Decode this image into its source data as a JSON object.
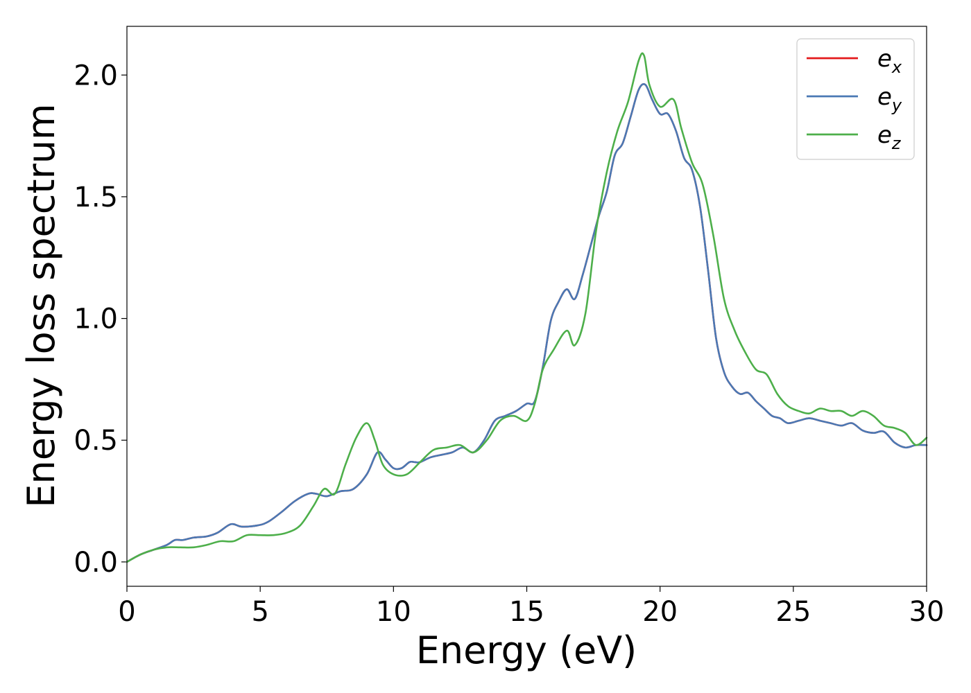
{
  "chart_data": {
    "type": "line",
    "xlabel": "Energy (eV)",
    "ylabel": "Energy loss spectrum",
    "xlim": [
      0,
      30
    ],
    "ylim": [
      -0.1,
      2.2
    ],
    "xticks": [
      0,
      5,
      10,
      15,
      20,
      25,
      30
    ],
    "xtick_labels": [
      "0",
      "5",
      "10",
      "15",
      "20",
      "25",
      "30"
    ],
    "yticks": [
      0.0,
      0.5,
      1.0,
      1.5,
      2.0
    ],
    "ytick_labels": [
      "0.0",
      "0.5",
      "1.0",
      "1.5",
      "2.0"
    ],
    "grid": false,
    "legend_position": "top-right",
    "series": [
      {
        "name": "e_x",
        "label_main": "e",
        "label_sub": "x",
        "color": "#e41a1c",
        "x": [
          0,
          0.5,
          1,
          1.5,
          1.8,
          2.1,
          2.5,
          3,
          3.4,
          3.9,
          4.3,
          4.9,
          5.3,
          5.8,
          6.3,
          6.8,
          7.1,
          7.5,
          8,
          8.5,
          9,
          9.4,
          9.7,
          10,
          10.3,
          10.6,
          10.8,
          11,
          11.4,
          11.8,
          12.2,
          12.6,
          13,
          13.4,
          13.8,
          14.2,
          14.6,
          15,
          15.3,
          15.6,
          15.9,
          16.2,
          16.5,
          16.8,
          17.1,
          17.4,
          17.7,
          18,
          18.3,
          18.6,
          18.9,
          19.2,
          19.45,
          19.7,
          20,
          20.3,
          20.6,
          20.9,
          21.2,
          21.5,
          21.8,
          22.1,
          22.4,
          22.7,
          23,
          23.3,
          23.6,
          23.9,
          24.2,
          24.5,
          24.8,
          25.2,
          25.6,
          26,
          26.4,
          26.8,
          27.2,
          27.6,
          28,
          28.4,
          28.8,
          29.2,
          29.6,
          30
        ],
        "y": [
          0,
          0.03,
          0.05,
          0.07,
          0.09,
          0.09,
          0.1,
          0.105,
          0.12,
          0.155,
          0.145,
          0.15,
          0.165,
          0.205,
          0.25,
          0.28,
          0.28,
          0.27,
          0.29,
          0.3,
          0.36,
          0.45,
          0.42,
          0.385,
          0.385,
          0.41,
          0.41,
          0.41,
          0.43,
          0.44,
          0.45,
          0.47,
          0.45,
          0.5,
          0.58,
          0.6,
          0.62,
          0.65,
          0.66,
          0.8,
          0.99,
          1.07,
          1.12,
          1.08,
          1.18,
          1.3,
          1.42,
          1.52,
          1.67,
          1.72,
          1.83,
          1.94,
          1.96,
          1.9,
          1.84,
          1.84,
          1.77,
          1.66,
          1.61,
          1.46,
          1.2,
          0.92,
          0.78,
          0.72,
          0.69,
          0.695,
          0.66,
          0.63,
          0.6,
          0.59,
          0.57,
          0.58,
          0.59,
          0.58,
          0.57,
          0.56,
          0.57,
          0.54,
          0.53,
          0.535,
          0.49,
          0.47,
          0.48,
          0.48
        ]
      },
      {
        "name": "e_y",
        "label_main": "e",
        "label_sub": "y",
        "color": "#4a79b4",
        "x": [
          0,
          0.5,
          1,
          1.5,
          1.8,
          2.1,
          2.5,
          3,
          3.4,
          3.9,
          4.3,
          4.9,
          5.3,
          5.8,
          6.3,
          6.8,
          7.1,
          7.5,
          8,
          8.5,
          9,
          9.4,
          9.7,
          10,
          10.3,
          10.6,
          10.8,
          11,
          11.4,
          11.8,
          12.2,
          12.6,
          13,
          13.4,
          13.8,
          14.2,
          14.6,
          15,
          15.3,
          15.6,
          15.9,
          16.2,
          16.5,
          16.8,
          17.1,
          17.4,
          17.7,
          18,
          18.3,
          18.6,
          18.9,
          19.2,
          19.45,
          19.7,
          20,
          20.3,
          20.6,
          20.9,
          21.2,
          21.5,
          21.8,
          22.1,
          22.4,
          22.7,
          23,
          23.3,
          23.6,
          23.9,
          24.2,
          24.5,
          24.8,
          25.2,
          25.6,
          26,
          26.4,
          26.8,
          27.2,
          27.6,
          28,
          28.4,
          28.8,
          29.2,
          29.6,
          30
        ],
        "y": [
          0,
          0.03,
          0.05,
          0.07,
          0.09,
          0.09,
          0.1,
          0.105,
          0.12,
          0.155,
          0.145,
          0.15,
          0.165,
          0.205,
          0.25,
          0.28,
          0.28,
          0.27,
          0.29,
          0.3,
          0.36,
          0.45,
          0.42,
          0.385,
          0.385,
          0.41,
          0.41,
          0.41,
          0.43,
          0.44,
          0.45,
          0.47,
          0.45,
          0.5,
          0.58,
          0.6,
          0.62,
          0.65,
          0.66,
          0.8,
          0.99,
          1.07,
          1.12,
          1.08,
          1.18,
          1.3,
          1.42,
          1.52,
          1.67,
          1.72,
          1.83,
          1.94,
          1.96,
          1.9,
          1.84,
          1.84,
          1.77,
          1.66,
          1.61,
          1.46,
          1.2,
          0.92,
          0.78,
          0.72,
          0.69,
          0.695,
          0.66,
          0.63,
          0.6,
          0.59,
          0.57,
          0.58,
          0.59,
          0.58,
          0.57,
          0.56,
          0.57,
          0.54,
          0.53,
          0.535,
          0.49,
          0.47,
          0.48,
          0.48
        ]
      },
      {
        "name": "e_z",
        "label_main": "e",
        "label_sub": "z",
        "color": "#4daf4a",
        "x": [
          0,
          0.5,
          1,
          1.5,
          2,
          2.5,
          3,
          3.5,
          4,
          4.5,
          5,
          5.5,
          6,
          6.5,
          7,
          7.4,
          7.8,
          8.2,
          8.6,
          9,
          9.3,
          9.6,
          10,
          10.5,
          11,
          11.5,
          12,
          12.5,
          13,
          13.5,
          14,
          14.5,
          15,
          15.3,
          15.6,
          16,
          16.5,
          16.8,
          17.2,
          17.6,
          18,
          18.4,
          18.8,
          19.2,
          19.4,
          19.6,
          20,
          20.5,
          20.8,
          21.2,
          21.6,
          22,
          22.4,
          22.8,
          23.2,
          23.6,
          24,
          24.4,
          24.8,
          25.2,
          25.6,
          26,
          26.4,
          26.8,
          27.2,
          27.6,
          28,
          28.4,
          28.8,
          29.2,
          29.6,
          30
        ],
        "y": [
          0,
          0.03,
          0.05,
          0.06,
          0.06,
          0.06,
          0.07,
          0.085,
          0.085,
          0.11,
          0.11,
          0.11,
          0.12,
          0.15,
          0.23,
          0.3,
          0.28,
          0.4,
          0.51,
          0.57,
          0.5,
          0.4,
          0.36,
          0.36,
          0.41,
          0.46,
          0.47,
          0.48,
          0.45,
          0.5,
          0.58,
          0.6,
          0.58,
          0.65,
          0.79,
          0.87,
          0.95,
          0.89,
          1.02,
          1.36,
          1.6,
          1.77,
          1.89,
          2.06,
          2.08,
          1.96,
          1.87,
          1.9,
          1.78,
          1.64,
          1.55,
          1.34,
          1.08,
          0.95,
          0.86,
          0.79,
          0.77,
          0.69,
          0.64,
          0.62,
          0.61,
          0.63,
          0.62,
          0.62,
          0.6,
          0.62,
          0.6,
          0.56,
          0.55,
          0.53,
          0.48,
          0.51
        ]
      }
    ]
  }
}
